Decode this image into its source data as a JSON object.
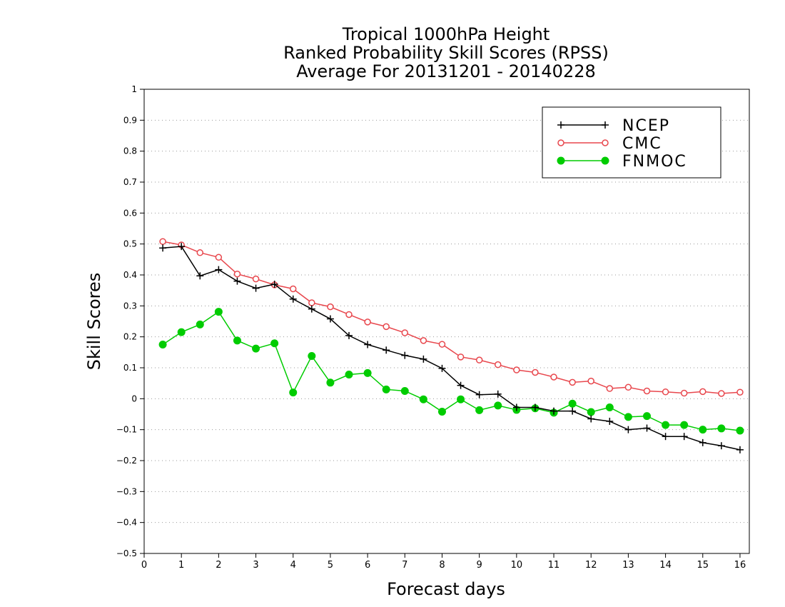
{
  "chart_data": {
    "type": "line",
    "title": [
      "Tropical 1000hPa Height",
      "Ranked Probability Skill Scores (RPSS)",
      "Average For 20131201 - 20140228"
    ],
    "xlabel": "Forecast days",
    "ylabel": "Skill Scores",
    "xlim": [
      0,
      16.25
    ],
    "ylim": [
      -0.5,
      1
    ],
    "x_ticks": [
      "0",
      "1",
      "2",
      "3",
      "4",
      "5",
      "6",
      "7",
      "8",
      "9",
      "10",
      "11",
      "12",
      "13",
      "14",
      "15",
      "16"
    ],
    "y_ticks": [
      "−0.5",
      "−0.4",
      "−0.3",
      "−0.2",
      "−0.1",
      "0",
      "0.1",
      "0.2",
      "0.3",
      "0.4",
      "0.5",
      "0.6",
      "0.7",
      "0.8",
      "0.9",
      "1"
    ],
    "grid": "horizontal dotted",
    "legend_position": "top-right",
    "x": [
      0.5,
      1,
      1.5,
      2,
      2.5,
      3,
      3.5,
      4,
      4.5,
      5,
      5.5,
      6,
      6.5,
      7,
      7.5,
      8,
      8.5,
      9,
      9.5,
      10,
      10.5,
      11,
      11.5,
      12,
      12.5,
      13,
      13.5,
      14,
      14.5,
      15,
      15.5,
      16
    ],
    "series": [
      {
        "name": "NCEP",
        "color": "#000000",
        "marker": "plus",
        "values": [
          0.487,
          0.492,
          0.397,
          0.417,
          0.38,
          0.357,
          0.37,
          0.322,
          0.29,
          0.258,
          0.204,
          0.175,
          0.157,
          0.14,
          0.128,
          0.098,
          0.043,
          0.013,
          0.015,
          -0.028,
          -0.028,
          -0.04,
          -0.04,
          -0.065,
          -0.073,
          -0.1,
          -0.095,
          -0.122,
          -0.122,
          -0.142,
          -0.152,
          -0.165
        ]
      },
      {
        "name": "CMC",
        "color": "#e8474d",
        "marker": "open-circle",
        "values": [
          0.508,
          0.497,
          0.472,
          0.457,
          0.403,
          0.387,
          0.368,
          0.355,
          0.31,
          0.297,
          0.272,
          0.248,
          0.233,
          0.213,
          0.188,
          0.176,
          0.135,
          0.125,
          0.11,
          0.093,
          0.085,
          0.07,
          0.053,
          0.057,
          0.033,
          0.037,
          0.025,
          0.022,
          0.018,
          0.023,
          0.017,
          0.021
        ]
      },
      {
        "name": "FNMOC",
        "color": "#00cc00",
        "marker": "filled-circle",
        "values": [
          0.175,
          0.215,
          0.24,
          0.281,
          0.188,
          0.162,
          0.179,
          0.02,
          0.138,
          0.052,
          0.078,
          0.083,
          0.03,
          0.025,
          -0.002,
          -0.042,
          -0.002,
          -0.037,
          -0.022,
          -0.036,
          -0.031,
          -0.045,
          -0.016,
          -0.043,
          -0.028,
          -0.059,
          -0.056,
          -0.085,
          -0.085,
          -0.1,
          -0.096,
          -0.103
        ]
      }
    ]
  }
}
